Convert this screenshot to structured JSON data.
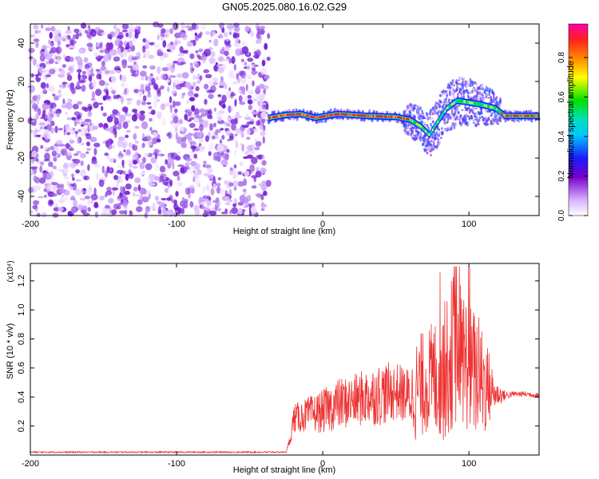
{
  "figure": {
    "title": "GN05.2025.080.16.02.G29"
  },
  "chart_data": [
    {
      "type": "heatmap",
      "title": "GN05.2025.080.16.02.G29",
      "xlabel": "Height of straight line (km)",
      "ylabel": "Frequency (Hz)",
      "xlim": [
        -200,
        148
      ],
      "ylim": [
        -50,
        50
      ],
      "x_ticks": [
        "-200",
        "-100",
        "0",
        "100"
      ],
      "y_ticks": [
        "-40",
        "-20",
        "0",
        "20",
        "40"
      ],
      "colorbar": {
        "label": "Normalized spectral amplitude",
        "range": [
          0,
          0.97
        ],
        "ticks": [
          "0.0",
          "0.2",
          "0.4",
          "0.6",
          "0.8"
        ],
        "colors": [
          "#ffffff",
          "#7a00cc",
          "#1a1aff",
          "#00e0e0",
          "#00e000",
          "#ffff00",
          "#ff8800",
          "#ff2020",
          "#ff00aa"
        ]
      },
      "noise_region": {
        "x_range": [
          -200,
          -37
        ],
        "freq_range": [
          -50,
          50
        ],
        "level": "low, purple"
      },
      "signal_track": [
        {
          "height_km": -37,
          "freq_hz": 1
        },
        {
          "height_km": -25,
          "freq_hz": 2.5
        },
        {
          "height_km": -15,
          "freq_hz": 3
        },
        {
          "height_km": -5,
          "freq_hz": 1
        },
        {
          "height_km": 10,
          "freq_hz": 3
        },
        {
          "height_km": 30,
          "freq_hz": 2
        },
        {
          "height_km": 50,
          "freq_hz": 1.5
        },
        {
          "height_km": 60,
          "freq_hz": 0
        },
        {
          "height_km": 68,
          "freq_hz": -4
        },
        {
          "height_km": 73,
          "freq_hz": -8
        },
        {
          "height_km": 78,
          "freq_hz": -2
        },
        {
          "height_km": 85,
          "freq_hz": 6
        },
        {
          "height_km": 92,
          "freq_hz": 10
        },
        {
          "height_km": 100,
          "freq_hz": 9
        },
        {
          "height_km": 108,
          "freq_hz": 8
        },
        {
          "height_km": 118,
          "freq_hz": 6
        },
        {
          "height_km": 125,
          "freq_hz": 2
        },
        {
          "height_km": 148,
          "freq_hz": 2
        }
      ]
    },
    {
      "type": "line",
      "xlabel": "Height of straight line (km)",
      "ylabel": "SNR (10 * v/v)",
      "y_multiplier": "(x10⁴)",
      "xlim": [
        -200,
        148
      ],
      "ylim": [
        0,
        1.32
      ],
      "x_ticks": [
        "-200",
        "-100",
        "0",
        "100"
      ],
      "y_ticks": [
        "0.2",
        "0.4",
        "0.6",
        "0.8",
        "1.0",
        "1.2"
      ],
      "color": "#ee3333",
      "series": [
        {
          "x": [
            -200,
            -150,
            -100,
            -50,
            -25,
            -22,
            -20,
            -10,
            0,
            10,
            20,
            30,
            40,
            50,
            60,
            65,
            70,
            80,
            85,
            90,
            95,
            100,
            105,
            110,
            118,
            125,
            130,
            140,
            148
          ],
          "values": [
            0.02,
            0.02,
            0.02,
            0.02,
            0.02,
            0.12,
            0.25,
            0.28,
            0.3,
            0.35,
            0.37,
            0.4,
            0.42,
            0.44,
            0.4,
            0.45,
            0.5,
            0.55,
            0.6,
            0.75,
            0.7,
            0.6,
            0.55,
            0.5,
            0.42,
            0.41,
            0.42,
            0.42,
            0.41
          ],
          "spread": [
            0.005,
            0.005,
            0.005,
            0.005,
            0.005,
            0.04,
            0.1,
            0.12,
            0.15,
            0.18,
            0.18,
            0.2,
            0.22,
            0.2,
            0.2,
            0.4,
            0.35,
            0.45,
            0.5,
            0.55,
            0.5,
            0.45,
            0.45,
            0.4,
            0.1,
            0.03,
            0.02,
            0.02,
            0.02
          ]
        }
      ]
    }
  ]
}
